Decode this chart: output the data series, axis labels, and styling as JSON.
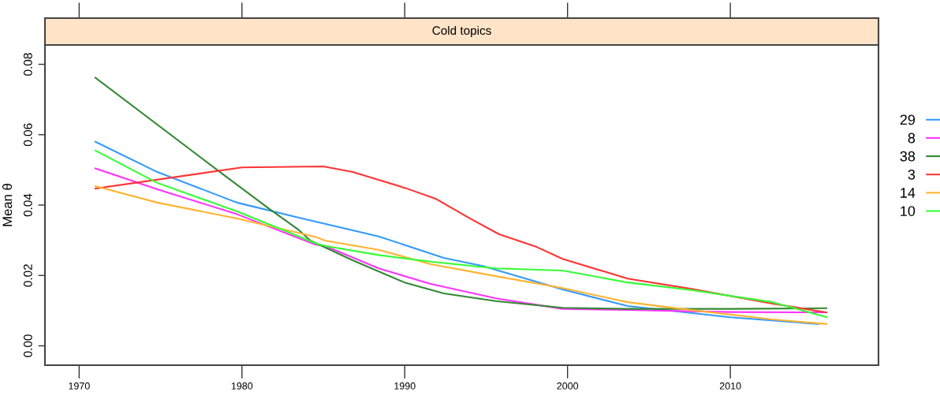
{
  "chart_data": {
    "type": "line",
    "title": "Cold topics",
    "ylabel": "Mean θ",
    "xlim": [
      1967.9,
      2019.1
    ],
    "ylim": [
      -0.0055,
      0.0855
    ],
    "xticks": [
      1970,
      1980,
      1990,
      2000,
      2010
    ],
    "yticks": [
      {
        "value": 0,
        "label": "0.00"
      },
      {
        "value": 0.02,
        "label": "0.02"
      },
      {
        "value": 0.04,
        "label": "0.04"
      },
      {
        "value": 0.06,
        "label": "0.06"
      },
      {
        "value": 0.08,
        "label": "0.08"
      }
    ],
    "grid": false,
    "legend": "right",
    "line_style": "solid",
    "marker": "none",
    "series": [
      {
        "name": "29",
        "color": "#3399ff",
        "x": [
          1971,
          1974.8,
          1979.7,
          1983.5,
          1988.4,
          1992.4,
          1994.8,
          1999.7,
          2003.7,
          2010,
          2015.4
        ],
        "values": [
          0.058,
          0.0494,
          0.0407,
          0.0364,
          0.0311,
          0.025,
          0.0227,
          0.016,
          0.0113,
          0.0081,
          0.0062
        ]
      },
      {
        "name": "8",
        "color": "#ff33ff",
        "x": [
          1971,
          1974.8,
          1979.7,
          1984.5,
          1985.1,
          1988.4,
          1991.6,
          1995.6,
          1999.7,
          2003.7,
          2010,
          2015.9
        ],
        "values": [
          0.0504,
          0.0445,
          0.0374,
          0.0288,
          0.0284,
          0.022,
          0.0176,
          0.0135,
          0.0105,
          0.0102,
          0.0096,
          0.0095
        ]
      },
      {
        "name": "38",
        "color": "#338833",
        "x": [
          1971,
          1978.7,
          1981.6,
          1983.5,
          1984.2,
          1986.8,
          1990,
          1992.4,
          1995.6,
          1999.7,
          2003.7,
          2010,
          2015.9
        ],
        "values": [
          0.0762,
          0.0492,
          0.0392,
          0.0329,
          0.0299,
          0.0243,
          0.018,
          0.0149,
          0.0127,
          0.0108,
          0.0105,
          0.0105,
          0.0107
        ]
      },
      {
        "name": "3",
        "color": "#ff3333",
        "x": [
          1971,
          1980,
          1985,
          1986.8,
          1990,
          1991.9,
          1994,
          1995.8,
          1998.1,
          1999.7,
          2003.7,
          2007.7,
          2012.6,
          2015.9
        ],
        "values": [
          0.0447,
          0.0507,
          0.051,
          0.0494,
          0.0449,
          0.0418,
          0.0362,
          0.0317,
          0.0281,
          0.0247,
          0.0191,
          0.0161,
          0.012,
          0.0095
        ]
      },
      {
        "name": "14",
        "color": "#ffb330",
        "x": [
          1971,
          1974.8,
          1979.7,
          1984.5,
          1985.1,
          1988.4,
          1991.6,
          1995.6,
          1999.7,
          2003.7,
          2007.7,
          2012.6,
          2015.9
        ],
        "values": [
          0.0454,
          0.0407,
          0.0362,
          0.031,
          0.0299,
          0.0273,
          0.0232,
          0.0198,
          0.0164,
          0.0124,
          0.0101,
          0.0075,
          0.0062
        ]
      },
      {
        "name": "10",
        "color": "#33ff33",
        "x": [
          1971,
          1974.8,
          1979.7,
          1984.5,
          1985.1,
          1988.4,
          1991.6,
          1995.6,
          1999.7,
          2003.7,
          2007.7,
          2012.6,
          2015.9
        ],
        "values": [
          0.0555,
          0.0463,
          0.0382,
          0.0292,
          0.0284,
          0.0258,
          0.0239,
          0.022,
          0.0214,
          0.018,
          0.0158,
          0.0124,
          0.0082
        ]
      }
    ]
  }
}
